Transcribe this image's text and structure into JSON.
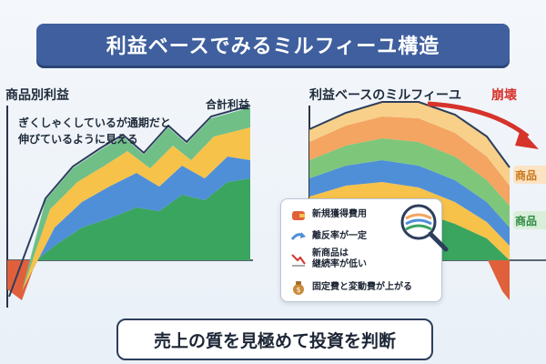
{
  "title": "利益ベースでみるミルフィーユ構造",
  "left_panel": {
    "label_top_left": "商品別利益",
    "label_top_right": "合計利益",
    "annotation_line1": "ぎくしゃくしているが通期だと",
    "annotation_line2": "伸びているように見える"
  },
  "right_panel": {
    "heading_main": "利益ベースのミルフィーユ",
    "heading_emphasis": "崩壊",
    "side_label_1": "商品",
    "side_label_2": "商品"
  },
  "legend": {
    "items": [
      {
        "icon": "wallet-icon",
        "label": "新規獲得費用"
      },
      {
        "icon": "arrow-right-icon",
        "label": "離反率が一定"
      },
      {
        "icon": "chart-down-icon",
        "label": "新商品は\n継続率が低い"
      },
      {
        "icon": "money-bag-icon",
        "label": "固定費と変動費が上がる"
      }
    ]
  },
  "caption": "売上の質を見極めて投資を判断",
  "colors": {
    "banner": "#3f5f9e",
    "emphasis": "#d6332b",
    "layer_dark_green": "#3aa55f",
    "layer_blue": "#4f8fd8",
    "layer_yellow": "#f6c24a",
    "layer_light_green": "#7ec77a",
    "layer_orange": "#f3a561",
    "layer_red": "#e0603c"
  }
}
